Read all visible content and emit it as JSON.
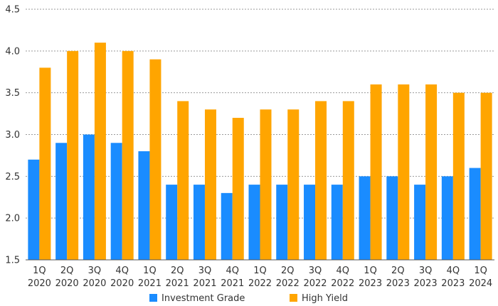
{
  "chart_data": {
    "type": "bar",
    "title": "",
    "xlabel": "",
    "ylabel": "",
    "ylim": [
      1.5,
      4.5
    ],
    "yticks": [
      "1.5",
      "2.0",
      "2.5",
      "3.0",
      "3.5",
      "4.0",
      "4.5"
    ],
    "grid": true,
    "legend_position": "bottom",
    "categories": [
      [
        "1Q",
        "2020"
      ],
      [
        "2Q",
        "2020"
      ],
      [
        "3Q",
        "2020"
      ],
      [
        "4Q",
        "2020"
      ],
      [
        "1Q",
        "2021"
      ],
      [
        "2Q",
        "2021"
      ],
      [
        "3Q",
        "2021"
      ],
      [
        "4Q",
        "2021"
      ],
      [
        "1Q",
        "2022"
      ],
      [
        "2Q",
        "2022"
      ],
      [
        "3Q",
        "2022"
      ],
      [
        "4Q",
        "2022"
      ],
      [
        "1Q",
        "2023"
      ],
      [
        "2Q",
        "2023"
      ],
      [
        "3Q",
        "2023"
      ],
      [
        "4Q",
        "2023"
      ],
      [
        "1Q",
        "2024"
      ]
    ],
    "series": [
      {
        "name": "Investment Grade",
        "color": "#1a8cff",
        "values": [
          2.7,
          2.9,
          3.0,
          2.9,
          2.8,
          2.4,
          2.4,
          2.3,
          2.4,
          2.4,
          2.4,
          2.4,
          2.5,
          2.5,
          2.4,
          2.5,
          2.6
        ]
      },
      {
        "name": "High Yield",
        "color": "#ffa500",
        "values": [
          3.8,
          4.0,
          4.1,
          4.0,
          3.9,
          3.4,
          3.3,
          3.2,
          3.3,
          3.3,
          3.4,
          3.4,
          3.6,
          3.6,
          3.6,
          3.5,
          3.5
        ]
      }
    ]
  }
}
